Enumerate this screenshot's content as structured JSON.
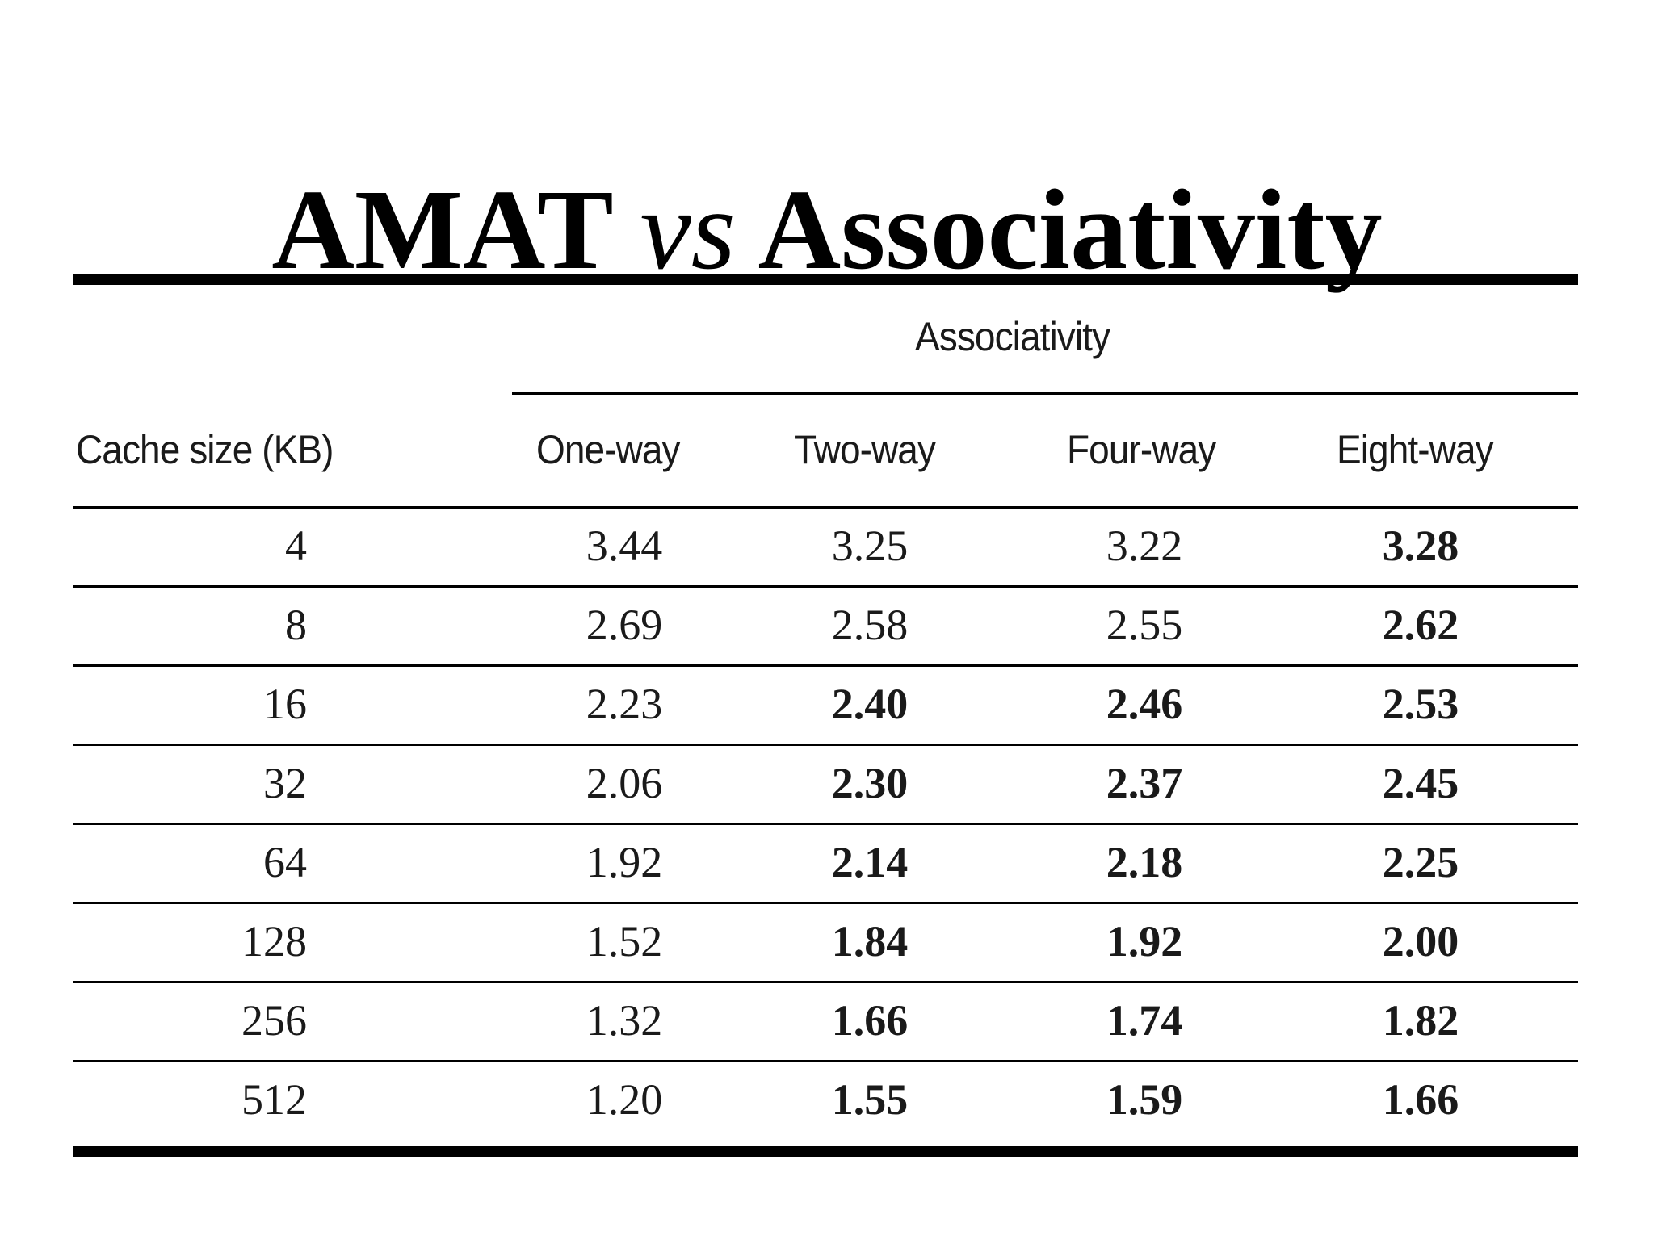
{
  "slide": {
    "title_part1": "AMAT",
    "title_vs": "vs",
    "title_part2": "Associativity"
  },
  "table": {
    "group_header": "Associativity",
    "row_header": "Cache size (KB)",
    "columns": [
      "One-way",
      "Two-way",
      "Four-way",
      "Eight-way"
    ],
    "rows": [
      {
        "size": "4",
        "values": [
          "3.44",
          "3.25",
          "3.22",
          "3.28"
        ],
        "bold": [
          false,
          false,
          false,
          true
        ]
      },
      {
        "size": "8",
        "values": [
          "2.69",
          "2.58",
          "2.55",
          "2.62"
        ],
        "bold": [
          false,
          false,
          false,
          true
        ]
      },
      {
        "size": "16",
        "values": [
          "2.23",
          "2.40",
          "2.46",
          "2.53"
        ],
        "bold": [
          false,
          true,
          true,
          true
        ]
      },
      {
        "size": "32",
        "values": [
          "2.06",
          "2.30",
          "2.37",
          "2.45"
        ],
        "bold": [
          false,
          true,
          true,
          true
        ]
      },
      {
        "size": "64",
        "values": [
          "1.92",
          "2.14",
          "2.18",
          "2.25"
        ],
        "bold": [
          false,
          true,
          true,
          true
        ]
      },
      {
        "size": "128",
        "values": [
          "1.52",
          "1.84",
          "1.92",
          "2.00"
        ],
        "bold": [
          false,
          true,
          true,
          true
        ]
      },
      {
        "size": "256",
        "values": [
          "1.32",
          "1.66",
          "1.74",
          "1.82"
        ],
        "bold": [
          false,
          true,
          true,
          true
        ]
      },
      {
        "size": "512",
        "values": [
          "1.20",
          "1.55",
          "1.59",
          "1.66"
        ],
        "bold": [
          false,
          true,
          true,
          true
        ]
      }
    ]
  }
}
